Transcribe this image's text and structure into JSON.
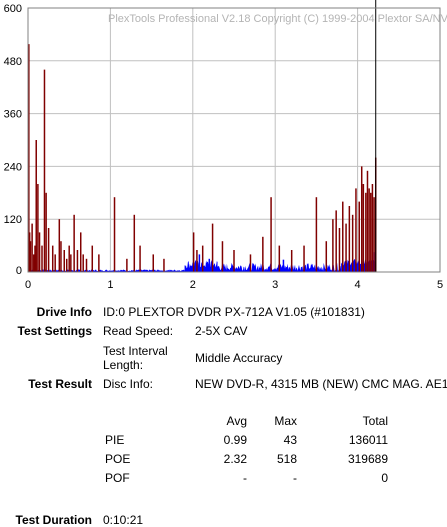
{
  "chart_data": {
    "type": "bar",
    "watermark": "PlexTools Professional V2.18 Copyright (C) 1999-2004 Plextor SA/NV",
    "x_ticks": [
      "0",
      "1",
      "2",
      "3",
      "4",
      "5"
    ],
    "y_ticks": [
      "0",
      "120",
      "240",
      "360",
      "480",
      "600"
    ],
    "xlim": [
      0,
      5
    ],
    "ylim": [
      0,
      600
    ],
    "grid": true,
    "colors": {
      "poe": "#800000",
      "pie": "#0000ff",
      "grid": "#c0c0c0",
      "end_marker": "#000000"
    },
    "series": [
      {
        "key": "poe",
        "points": [
          [
            0.005,
            430
          ],
          [
            0.01,
            518
          ],
          [
            0.02,
            90
          ],
          [
            0.03,
            70
          ],
          [
            0.05,
            110
          ],
          [
            0.07,
            40
          ],
          [
            0.085,
            60
          ],
          [
            0.1,
            300
          ],
          [
            0.12,
            200
          ],
          [
            0.14,
            90
          ],
          [
            0.17,
            60
          ],
          [
            0.2,
            460
          ],
          [
            0.22,
            180
          ],
          [
            0.25,
            100
          ],
          [
            0.3,
            60
          ],
          [
            0.33,
            40
          ],
          [
            0.38,
            120
          ],
          [
            0.4,
            70
          ],
          [
            0.44,
            50
          ],
          [
            0.47,
            30
          ],
          [
            0.5,
            60
          ],
          [
            0.52,
            40
          ],
          [
            0.56,
            130
          ],
          [
            0.6,
            50
          ],
          [
            0.64,
            90
          ],
          [
            0.67,
            40
          ],
          [
            0.71,
            30
          ],
          [
            0.78,
            60
          ],
          [
            0.86,
            40
          ],
          [
            1.05,
            170
          ],
          [
            1.2,
            30
          ],
          [
            1.29,
            130
          ],
          [
            1.36,
            60
          ],
          [
            1.52,
            40
          ],
          [
            1.65,
            30
          ],
          [
            2.01,
            90
          ],
          [
            2.05,
            50
          ],
          [
            2.12,
            60
          ],
          [
            2.24,
            110
          ],
          [
            2.36,
            70
          ],
          [
            2.5,
            50
          ],
          [
            2.7,
            40
          ],
          [
            2.85,
            80
          ],
          [
            2.95,
            170
          ],
          [
            3.05,
            60
          ],
          [
            3.2,
            50
          ],
          [
            3.35,
            60
          ],
          [
            3.5,
            170
          ],
          [
            3.62,
            70
          ],
          [
            3.7,
            120
          ],
          [
            3.74,
            140
          ],
          [
            3.78,
            100
          ],
          [
            3.82,
            160
          ],
          [
            3.86,
            110
          ],
          [
            3.9,
            150
          ],
          [
            3.94,
            130
          ],
          [
            3.98,
            190
          ],
          [
            4.02,
            160
          ],
          [
            4.05,
            240
          ],
          [
            4.07,
            200
          ],
          [
            4.1,
            180
          ],
          [
            4.12,
            230
          ],
          [
            4.14,
            190
          ],
          [
            4.16,
            180
          ],
          [
            4.18,
            200
          ],
          [
            4.2,
            170
          ],
          [
            4.22,
            260
          ]
        ]
      },
      {
        "key": "pie",
        "segments": [
          {
            "x0": 0.0,
            "x1": 1.9,
            "level": 4,
            "noise": 2
          },
          {
            "x0": 1.9,
            "x1": 2.3,
            "level": 18,
            "noise": 10
          },
          {
            "x0": 2.3,
            "x1": 3.8,
            "level": 12,
            "noise": 9
          },
          {
            "x0": 3.8,
            "x1": 4.22,
            "level": 22,
            "noise": 8
          }
        ],
        "spikes": [
          [
            2.08,
            40
          ],
          [
            2.2,
            30
          ],
          [
            3.1,
            28
          ],
          [
            4.2,
            45
          ]
        ]
      }
    ],
    "end_marker_x": 4.22
  },
  "drive_info": {
    "label": "Drive Info",
    "value": "ID:0 PLEXTOR DVDR PX-712A V1.05 (#101831)"
  },
  "test_settings": {
    "label": "Test Settings",
    "read_speed_label": "Read Speed:",
    "read_speed_value": "2-5X CAV",
    "interval_label_line1": "Test Interval",
    "interval_label_line2": "Length:",
    "interval_value": "Middle Accuracy"
  },
  "test_result": {
    "label": "Test Result",
    "disc_info_label": "Disc Info:",
    "disc_info_value": "NEW DVD-R, 4315 MB (NEW) CMC MAG. AE1"
  },
  "results_table": {
    "headers": {
      "avg": "Avg",
      "max": "Max",
      "total": "Total"
    },
    "rows": [
      {
        "name": "PIE",
        "avg": "0.99",
        "max": "43",
        "total": "136011"
      },
      {
        "name": "POE",
        "avg": "2.32",
        "max": "518",
        "total": "319689"
      },
      {
        "name": "POF",
        "avg": "-",
        "max": "-",
        "total": "0"
      }
    ]
  },
  "test_duration": {
    "label": "Test Duration",
    "value": "0:10:21"
  }
}
